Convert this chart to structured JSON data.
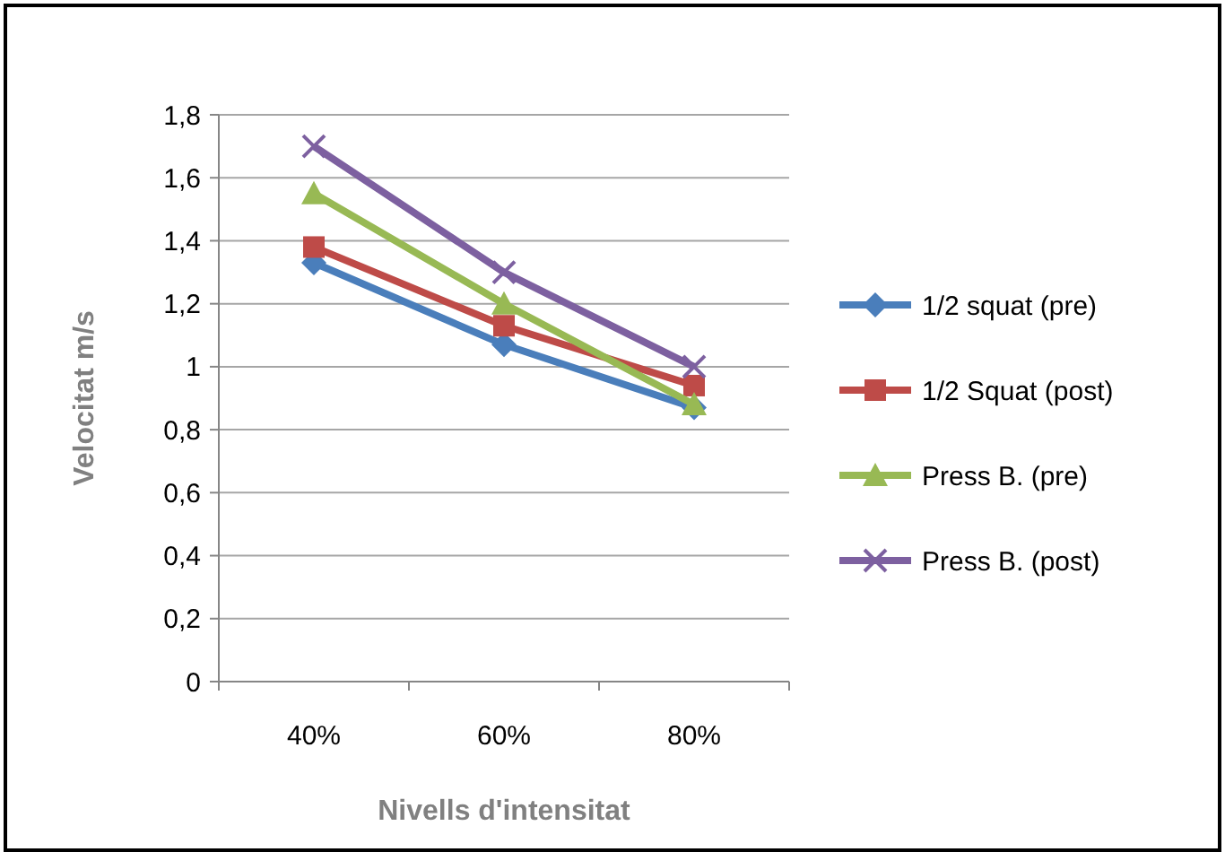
{
  "chart_data": {
    "type": "line",
    "xlabel": "Nivells d'intensitat",
    "ylabel": "Velocitat m/s",
    "categories": [
      "40%",
      "60%",
      "80%"
    ],
    "series": [
      {
        "name": "1/2 squat (pre)",
        "color": "#4a7ebb",
        "values": [
          1.33,
          1.07,
          0.87
        ],
        "marker": "diamond"
      },
      {
        "name": "1/2 Squat (post)",
        "color": "#be4b48",
        "values": [
          1.38,
          1.13,
          0.94
        ],
        "marker": "square"
      },
      {
        "name": "Press B. (pre)",
        "color": "#98b954",
        "values": [
          1.55,
          1.2,
          0.88
        ],
        "marker": "triangle"
      },
      {
        "name": "Press B. (post)",
        "color": "#7d60a0",
        "values": [
          1.7,
          1.3,
          1.0
        ],
        "marker": "cross"
      }
    ],
    "ylim": [
      0,
      1.8
    ],
    "yticks": [
      {
        "value": 0,
        "label": "0"
      },
      {
        "value": 0.2,
        "label": "0,2"
      },
      {
        "value": 0.4,
        "label": "0,4"
      },
      {
        "value": 0.6,
        "label": "0,6"
      },
      {
        "value": 0.8,
        "label": "0,8"
      },
      {
        "value": 1,
        "label": "1"
      },
      {
        "value": 1.2,
        "label": "1,2"
      },
      {
        "value": 1.4,
        "label": "1,4"
      },
      {
        "value": 1.6,
        "label": "1,6"
      },
      {
        "value": 1.8,
        "label": "1,8"
      }
    ],
    "grid": "y",
    "legend": "right"
  }
}
